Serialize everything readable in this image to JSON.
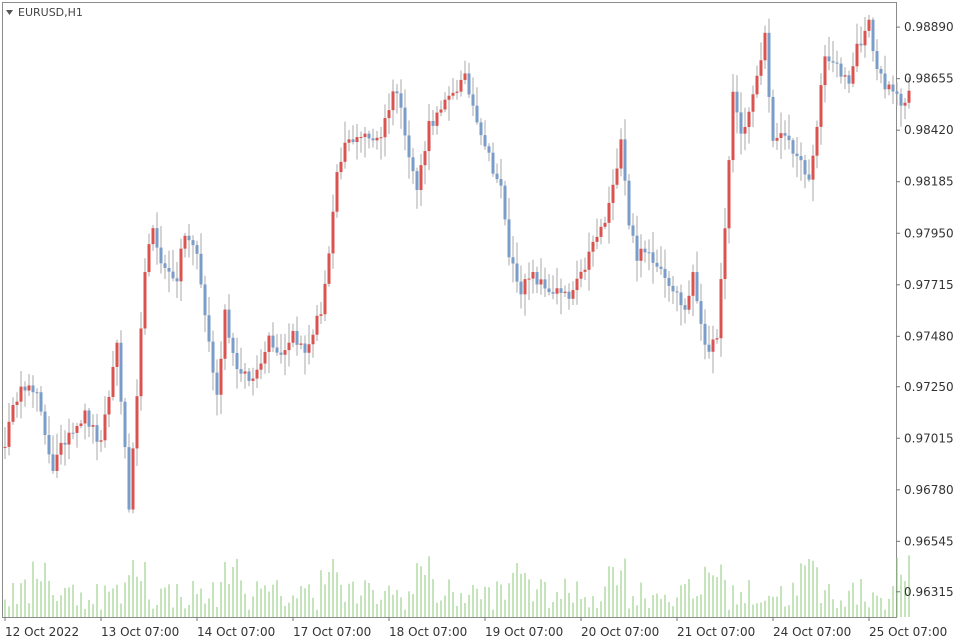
{
  "chart_data": {
    "type": "candlestick",
    "symbol": "EURUSD,H1",
    "ylim": [
      0.962,
      0.99
    ],
    "y_ticks": [
      "0.98890",
      "0.98655",
      "0.98420",
      "0.98185",
      "0.97950",
      "0.97715",
      "0.97480",
      "0.97250",
      "0.97015",
      "0.96780",
      "0.96545",
      "0.96315"
    ],
    "x_ticks": [
      {
        "label": "12 Oct 2022",
        "index": 0
      },
      {
        "label": "13 Oct 07:00",
        "index": 24
      },
      {
        "label": "14 Oct 07:00",
        "index": 48
      },
      {
        "label": "17 Oct 07:00",
        "index": 72
      },
      {
        "label": "18 Oct 07:00",
        "index": 96
      },
      {
        "label": "19 Oct 07:00",
        "index": 120
      },
      {
        "label": "20 Oct 07:00",
        "index": 144
      },
      {
        "label": "21 Oct 07:00",
        "index": 168
      },
      {
        "label": "24 Oct 07:00",
        "index": 192
      },
      {
        "label": "25 Oct 07:00",
        "index": 216
      }
    ],
    "colors": {
      "bull": "#d9534f",
      "bear": "#7a9cc8",
      "wick": "#aaaaaa",
      "volume": "#8cc97a",
      "axis": "#777777"
    },
    "anchors": [
      [
        0,
        0.97
      ],
      [
        4,
        0.9728
      ],
      [
        8,
        0.972
      ],
      [
        12,
        0.9688
      ],
      [
        16,
        0.9705
      ],
      [
        20,
        0.9712
      ],
      [
        24,
        0.9698
      ],
      [
        28,
        0.9745
      ],
      [
        31,
        0.967
      ],
      [
        33,
        0.9718
      ],
      [
        35,
        0.978
      ],
      [
        37,
        0.9795
      ],
      [
        40,
        0.9778
      ],
      [
        43,
        0.9775
      ],
      [
        45,
        0.9795
      ],
      [
        48,
        0.9785
      ],
      [
        51,
        0.9745
      ],
      [
        53,
        0.972
      ],
      [
        55,
        0.976
      ],
      [
        57,
        0.974
      ],
      [
        59,
        0.973
      ],
      [
        62,
        0.9728
      ],
      [
        66,
        0.9748
      ],
      [
        69,
        0.974
      ],
      [
        72,
        0.975
      ],
      [
        75,
        0.974
      ],
      [
        79,
        0.976
      ],
      [
        81,
        0.9785
      ],
      [
        83,
        0.982
      ],
      [
        85,
        0.9835
      ],
      [
        88,
        0.984
      ],
      [
        91,
        0.9838
      ],
      [
        94,
        0.984
      ],
      [
        97,
        0.986
      ],
      [
        99,
        0.9855
      ],
      [
        101,
        0.983
      ],
      [
        103,
        0.9815
      ],
      [
        106,
        0.9845
      ],
      [
        109,
        0.985
      ],
      [
        112,
        0.986
      ],
      [
        115,
        0.9865
      ],
      [
        118,
        0.9848
      ],
      [
        121,
        0.983
      ],
      [
        124,
        0.9815
      ],
      [
        126,
        0.9785
      ],
      [
        129,
        0.977
      ],
      [
        132,
        0.9775
      ],
      [
        135,
        0.977
      ],
      [
        138,
        0.9768
      ],
      [
        141,
        0.9765
      ],
      [
        144,
        0.9775
      ],
      [
        147,
        0.979
      ],
      [
        150,
        0.98
      ],
      [
        152,
        0.9815
      ],
      [
        154,
        0.984
      ],
      [
        156,
        0.98
      ],
      [
        158,
        0.9785
      ],
      [
        161,
        0.9786
      ],
      [
        164,
        0.978
      ],
      [
        167,
        0.977
      ],
      [
        170,
        0.976
      ],
      [
        172,
        0.9775
      ],
      [
        174,
        0.9755
      ],
      [
        176,
        0.9738
      ],
      [
        178,
        0.975
      ],
      [
        180,
        0.9795
      ],
      [
        182,
        0.986
      ],
      [
        184,
        0.984
      ],
      [
        186,
        0.985
      ],
      [
        188,
        0.9865
      ],
      [
        190,
        0.9885
      ],
      [
        192,
        0.9835
      ],
      [
        195,
        0.984
      ],
      [
        198,
        0.983
      ],
      [
        201,
        0.9818
      ],
      [
        203,
        0.9845
      ],
      [
        205,
        0.9875
      ],
      [
        208,
        0.987
      ],
      [
        211,
        0.9865
      ],
      [
        213,
        0.988
      ],
      [
        216,
        0.989
      ],
      [
        218,
        0.987
      ],
      [
        221,
        0.986
      ],
      [
        224,
        0.9855
      ],
      [
        226,
        0.986
      ]
    ],
    "volume": {
      "bar_count": 227,
      "relative_range": [
        0.1,
        1.0
      ]
    }
  }
}
